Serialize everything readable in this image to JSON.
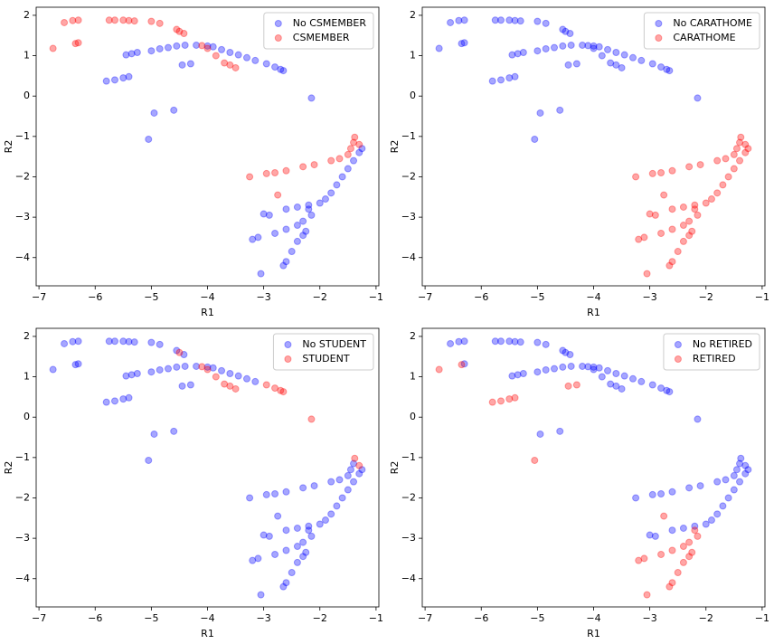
{
  "chart_data": [
    {
      "type": "scatter",
      "xlabel": "R1",
      "ylabel": "R2",
      "xlim": [
        -7.05,
        -0.95
      ],
      "ylim": [
        -4.7,
        2.2
      ],
      "xticks": [
        {
          "value": -7,
          "label": "−7"
        },
        {
          "value": -6,
          "label": "−6"
        },
        {
          "value": -5,
          "label": "−5"
        },
        {
          "value": -4,
          "label": "−4"
        },
        {
          "value": -3,
          "label": "−3"
        },
        {
          "value": -2,
          "label": "−2"
        },
        {
          "value": -1,
          "label": "−1"
        }
      ],
      "yticks": [
        {
          "value": -4,
          "label": "−4"
        },
        {
          "value": -3,
          "label": "−3"
        },
        {
          "value": -2,
          "label": "−2"
        },
        {
          "value": -1,
          "label": "−1"
        },
        0,
        1,
        2
      ],
      "legend": "upper right",
      "marker_alpha": 0.35,
      "series": [
        {
          "name": "No CSMEMBER",
          "color": "#0000ff",
          "x": [
            -5.45,
            -5.35,
            -5.25,
            -5.0,
            -4.85,
            -4.7,
            -4.55,
            -4.4,
            -4.2,
            -4.0,
            -3.9,
            -3.75,
            -3.6,
            -3.45,
            -3.3,
            -3.15,
            -2.95,
            -2.8,
            -2.7,
            -2.65,
            -5.8,
            -5.65,
            -5.5,
            -5.4,
            -4.45,
            -4.3,
            -4.95,
            -4.6,
            -5.05,
            -2.15,
            -1.25,
            -1.3,
            -1.4,
            -1.5,
            -1.6,
            -1.7,
            -1.8,
            -1.9,
            -2.0,
            -2.2,
            -2.4,
            -2.6,
            -2.9,
            -3.0,
            -2.2,
            -2.15,
            -2.3,
            -2.4,
            -2.6,
            -2.8,
            -3.1,
            -3.2,
            -2.25,
            -2.4,
            -2.5,
            -2.6,
            -2.65,
            -3.05,
            -2.3
          ],
          "values": [
            1.02,
            1.05,
            1.08,
            1.12,
            1.17,
            1.2,
            1.24,
            1.26,
            1.26,
            1.24,
            1.22,
            1.15,
            1.08,
            1.02,
            0.95,
            0.88,
            0.8,
            0.72,
            0.66,
            0.63,
            0.37,
            0.4,
            0.45,
            0.48,
            0.77,
            0.8,
            -0.42,
            -0.35,
            -1.07,
            -0.05,
            -1.3,
            -1.4,
            -1.6,
            -1.8,
            -2.0,
            -2.2,
            -2.4,
            -2.55,
            -2.65,
            -2.7,
            -2.75,
            -2.8,
            -2.95,
            -2.92,
            -2.8,
            -2.95,
            -3.1,
            -3.2,
            -3.3,
            -3.4,
            -3.5,
            -3.55,
            -3.35,
            -3.6,
            -3.85,
            -4.1,
            -4.2,
            -4.4,
            -3.45
          ]
        },
        {
          "name": "CSMEMBER",
          "color": "#ff0000",
          "x": [
            -6.55,
            -6.4,
            -6.3,
            -5.75,
            -5.65,
            -5.5,
            -5.4,
            -5.3,
            -5.0,
            -4.85,
            -4.55,
            -4.5,
            -4.42,
            -6.75,
            -6.35,
            -6.3,
            -4.1,
            -4.0,
            -3.85,
            -3.7,
            -3.6,
            -3.5,
            -3.25,
            -2.95,
            -2.8,
            -2.6,
            -2.3,
            -2.1,
            -1.8,
            -1.65,
            -1.5,
            -1.45,
            -1.4,
            -1.38,
            -1.3,
            -2.75
          ],
          "values": [
            1.82,
            1.87,
            1.88,
            1.88,
            1.88,
            1.88,
            1.87,
            1.86,
            1.85,
            1.8,
            1.65,
            1.6,
            1.55,
            1.18,
            1.3,
            1.32,
            1.25,
            1.18,
            1.0,
            0.82,
            0.77,
            0.7,
            -2.0,
            -1.92,
            -1.9,
            -1.85,
            -1.75,
            -1.7,
            -1.6,
            -1.55,
            -1.45,
            -1.3,
            -1.15,
            -1.02,
            -1.2,
            -2.45
          ]
        }
      ]
    },
    {
      "type": "scatter",
      "xlabel": "R1",
      "ylabel": "R2",
      "xlim": [
        -7.05,
        -0.95
      ],
      "ylim": [
        -4.7,
        2.2
      ],
      "xticks": [
        {
          "value": -7,
          "label": "−7"
        },
        {
          "value": -6,
          "label": "−6"
        },
        {
          "value": -5,
          "label": "−5"
        },
        {
          "value": -4,
          "label": "−4"
        },
        {
          "value": -3,
          "label": "−3"
        },
        {
          "value": -2,
          "label": "−2"
        },
        {
          "value": -1,
          "label": "−1"
        }
      ],
      "yticks": [
        {
          "value": -4,
          "label": "−4"
        },
        {
          "value": -3,
          "label": "−3"
        },
        {
          "value": -2,
          "label": "−2"
        },
        {
          "value": -1,
          "label": "−1"
        },
        0,
        1,
        2
      ],
      "legend": "upper right",
      "marker_alpha": 0.35,
      "series": [
        {
          "name": "No CARATHOME",
          "color": "#0000ff",
          "x": [
            -6.55,
            -6.4,
            -6.3,
            -5.75,
            -5.65,
            -5.5,
            -5.4,
            -5.3,
            -5.0,
            -4.85,
            -4.55,
            -4.5,
            -4.42,
            -6.75,
            -6.35,
            -6.3,
            -5.45,
            -5.35,
            -5.25,
            -5.0,
            -4.85,
            -4.7,
            -4.55,
            -4.4,
            -4.2,
            -4.0,
            -3.9,
            -3.75,
            -3.6,
            -3.45,
            -3.3,
            -3.15,
            -2.95,
            -2.8,
            -2.7,
            -2.65,
            -4.1,
            -4.0,
            -3.85,
            -3.7,
            -3.6,
            -3.5,
            -5.8,
            -5.65,
            -5.5,
            -5.4,
            -4.45,
            -4.3,
            -4.95,
            -4.6,
            -5.05,
            -2.15
          ],
          "values": [
            1.82,
            1.87,
            1.88,
            1.88,
            1.88,
            1.88,
            1.87,
            1.86,
            1.85,
            1.8,
            1.65,
            1.6,
            1.55,
            1.18,
            1.3,
            1.32,
            1.02,
            1.05,
            1.08,
            1.12,
            1.17,
            1.2,
            1.24,
            1.26,
            1.26,
            1.24,
            1.22,
            1.15,
            1.08,
            1.02,
            0.95,
            0.88,
            0.8,
            0.72,
            0.66,
            0.63,
            1.25,
            1.18,
            1.0,
            0.82,
            0.77,
            0.7,
            0.37,
            0.4,
            0.45,
            0.48,
            0.77,
            0.8,
            -0.42,
            -0.35,
            -1.07,
            -0.05
          ]
        },
        {
          "name": "CARATHOME",
          "color": "#ff0000",
          "x": [
            -3.25,
            -2.95,
            -2.8,
            -2.6,
            -2.3,
            -2.1,
            -1.8,
            -1.65,
            -1.5,
            -1.45,
            -1.4,
            -1.38,
            -1.3,
            -2.75,
            -1.25,
            -1.3,
            -1.4,
            -1.5,
            -1.6,
            -1.7,
            -1.8,
            -1.9,
            -2.0,
            -2.2,
            -2.4,
            -2.6,
            -2.9,
            -3.0,
            -2.2,
            -2.15,
            -2.3,
            -2.4,
            -2.6,
            -2.8,
            -3.1,
            -3.2,
            -2.25,
            -2.4,
            -2.5,
            -2.6,
            -2.65,
            -3.05,
            -2.3
          ],
          "values": [
            -2.0,
            -1.92,
            -1.9,
            -1.85,
            -1.75,
            -1.7,
            -1.6,
            -1.55,
            -1.45,
            -1.3,
            -1.15,
            -1.02,
            -1.2,
            -2.45,
            -1.3,
            -1.4,
            -1.6,
            -1.8,
            -2.0,
            -2.2,
            -2.4,
            -2.55,
            -2.65,
            -2.7,
            -2.75,
            -2.8,
            -2.95,
            -2.92,
            -2.8,
            -2.95,
            -3.1,
            -3.2,
            -3.3,
            -3.4,
            -3.5,
            -3.55,
            -3.35,
            -3.6,
            -3.85,
            -4.1,
            -4.2,
            -4.4,
            -3.45
          ]
        }
      ]
    },
    {
      "type": "scatter",
      "xlabel": "R1",
      "ylabel": "R2",
      "xlim": [
        -7.05,
        -0.95
      ],
      "ylim": [
        -4.7,
        2.2
      ],
      "xticks": [
        {
          "value": -7,
          "label": "−7"
        },
        {
          "value": -6,
          "label": "−6"
        },
        {
          "value": -5,
          "label": "−5"
        },
        {
          "value": -4,
          "label": "−4"
        },
        {
          "value": -3,
          "label": "−3"
        },
        {
          "value": -2,
          "label": "−2"
        },
        {
          "value": -1,
          "label": "−1"
        }
      ],
      "yticks": [
        {
          "value": -4,
          "label": "−4"
        },
        {
          "value": -3,
          "label": "−3"
        },
        {
          "value": -2,
          "label": "−2"
        },
        {
          "value": -1,
          "label": "−1"
        },
        0,
        1,
        2
      ],
      "legend": "upper right",
      "marker_alpha": 0.35,
      "series": [
        {
          "name": "No STUDENT",
          "color": "#0000ff",
          "x": [
            -6.55,
            -6.4,
            -6.3,
            -5.75,
            -5.65,
            -5.5,
            -5.4,
            -5.3,
            -5.0,
            -4.85,
            -4.55,
            -4.42,
            -6.75,
            -6.35,
            -6.3,
            -5.45,
            -5.35,
            -5.25,
            -5.0,
            -4.85,
            -4.7,
            -4.55,
            -4.4,
            -4.2,
            -4.0,
            -3.9,
            -3.75,
            -3.6,
            -3.45,
            -3.3,
            -3.15,
            -5.8,
            -5.65,
            -5.5,
            -5.4,
            -4.45,
            -4.3,
            -4.95,
            -4.6,
            -5.05,
            -3.25,
            -2.95,
            -2.8,
            -2.6,
            -2.3,
            -2.1,
            -1.8,
            -1.65,
            -1.5,
            -1.45,
            -1.4,
            -2.75,
            -1.25,
            -1.3,
            -1.4,
            -1.5,
            -1.6,
            -1.7,
            -1.8,
            -1.9,
            -2.0,
            -2.2,
            -2.4,
            -2.6,
            -2.9,
            -3.0,
            -2.2,
            -2.15,
            -2.3,
            -2.4,
            -2.6,
            -2.8,
            -3.1,
            -3.2,
            -2.25,
            -2.4,
            -2.5,
            -2.6,
            -2.65,
            -3.05,
            -2.3
          ],
          "values": [
            1.82,
            1.87,
            1.88,
            1.88,
            1.88,
            1.88,
            1.87,
            1.86,
            1.85,
            1.8,
            1.65,
            1.55,
            1.18,
            1.3,
            1.32,
            1.02,
            1.05,
            1.08,
            1.12,
            1.17,
            1.2,
            1.24,
            1.26,
            1.26,
            1.24,
            1.22,
            1.15,
            1.08,
            1.02,
            0.95,
            0.88,
            0.37,
            0.4,
            0.45,
            0.48,
            0.77,
            0.8,
            -0.42,
            -0.35,
            -1.07,
            -2.0,
            -1.92,
            -1.9,
            -1.85,
            -1.75,
            -1.7,
            -1.6,
            -1.55,
            -1.45,
            -1.3,
            -1.15,
            -2.45,
            -1.3,
            -1.4,
            -1.6,
            -1.8,
            -2.0,
            -2.2,
            -2.4,
            -2.55,
            -2.65,
            -2.7,
            -2.75,
            -2.8,
            -2.95,
            -2.92,
            -2.8,
            -2.95,
            -3.1,
            -3.2,
            -3.3,
            -3.4,
            -3.5,
            -3.55,
            -3.35,
            -3.6,
            -3.85,
            -4.1,
            -4.2,
            -4.4,
            -3.45
          ]
        },
        {
          "name": "STUDENT",
          "color": "#ff0000",
          "x": [
            -4.5,
            -4.1,
            -4.0,
            -3.85,
            -3.7,
            -3.6,
            -3.5,
            -2.95,
            -2.8,
            -2.7,
            -2.65,
            -2.15,
            -1.38,
            -1.3
          ],
          "values": [
            1.6,
            1.25,
            1.18,
            1.0,
            0.82,
            0.77,
            0.7,
            0.8,
            0.72,
            0.66,
            0.63,
            -0.05,
            -1.02,
            -1.2
          ]
        }
      ]
    },
    {
      "type": "scatter",
      "xlabel": "R1",
      "ylabel": "R2",
      "xlim": [
        -7.05,
        -0.95
      ],
      "ylim": [
        -4.7,
        2.2
      ],
      "xticks": [
        {
          "value": -7,
          "label": "−7"
        },
        {
          "value": -6,
          "label": "−6"
        },
        {
          "value": -5,
          "label": "−5"
        },
        {
          "value": -4,
          "label": "−4"
        },
        {
          "value": -3,
          "label": "−3"
        },
        {
          "value": -2,
          "label": "−2"
        },
        {
          "value": -1,
          "label": "−1"
        }
      ],
      "yticks": [
        {
          "value": -4,
          "label": "−4"
        },
        {
          "value": -3,
          "label": "−3"
        },
        {
          "value": -2,
          "label": "−2"
        },
        {
          "value": -1,
          "label": "−1"
        },
        0,
        1,
        2
      ],
      "legend": "upper right",
      "marker_alpha": 0.35,
      "series": [
        {
          "name": "No RETIRED",
          "color": "#0000ff",
          "x": [
            -6.55,
            -6.4,
            -6.3,
            -5.75,
            -5.65,
            -5.5,
            -5.4,
            -5.3,
            -5.0,
            -4.85,
            -4.55,
            -4.5,
            -4.42,
            -6.3,
            -5.45,
            -5.35,
            -5.25,
            -5.0,
            -4.85,
            -4.7,
            -4.55,
            -4.4,
            -4.2,
            -4.0,
            -3.9,
            -3.75,
            -3.6,
            -3.45,
            -3.3,
            -3.15,
            -2.95,
            -2.8,
            -2.7,
            -2.65,
            -4.1,
            -4.0,
            -3.85,
            -3.7,
            -3.6,
            -3.5,
            -4.95,
            -4.6,
            -2.15,
            -3.25,
            -2.95,
            -2.8,
            -2.6,
            -2.3,
            -2.1,
            -1.8,
            -1.65,
            -1.5,
            -1.45,
            -1.4,
            -1.38,
            -1.3,
            -1.25,
            -1.3,
            -1.4,
            -1.5,
            -1.6,
            -1.7,
            -1.8,
            -1.9,
            -2.0,
            -2.2,
            -2.4,
            -2.6,
            -2.9,
            -3.0
          ],
          "values": [
            1.82,
            1.87,
            1.88,
            1.88,
            1.88,
            1.88,
            1.87,
            1.86,
            1.85,
            1.8,
            1.65,
            1.6,
            1.55,
            1.32,
            1.02,
            1.05,
            1.08,
            1.12,
            1.17,
            1.2,
            1.24,
            1.26,
            1.26,
            1.24,
            1.22,
            1.15,
            1.08,
            1.02,
            0.95,
            0.88,
            0.8,
            0.72,
            0.66,
            0.63,
            1.25,
            1.18,
            1.0,
            0.82,
            0.77,
            0.7,
            -0.42,
            -0.35,
            -0.05,
            -2.0,
            -1.92,
            -1.9,
            -1.85,
            -1.75,
            -1.7,
            -1.6,
            -1.55,
            -1.45,
            -1.3,
            -1.15,
            -1.02,
            -1.2,
            -1.3,
            -1.4,
            -1.6,
            -1.8,
            -2.0,
            -2.2,
            -2.4,
            -2.55,
            -2.65,
            -2.7,
            -2.75,
            -2.8,
            -2.95,
            -2.92
          ]
        },
        {
          "name": "RETIRED",
          "color": "#ff0000",
          "x": [
            -6.75,
            -6.35,
            -5.8,
            -5.65,
            -5.5,
            -5.4,
            -4.45,
            -4.3,
            -5.05,
            -2.75,
            -2.2,
            -2.15,
            -2.3,
            -2.4,
            -2.6,
            -2.8,
            -3.1,
            -3.2,
            -2.25,
            -2.4,
            -2.5,
            -2.6,
            -2.65,
            -3.05,
            -2.3
          ],
          "values": [
            1.18,
            1.3,
            0.37,
            0.4,
            0.45,
            0.48,
            0.77,
            0.8,
            -1.07,
            -2.45,
            -2.8,
            -2.95,
            -3.1,
            -3.2,
            -3.3,
            -3.4,
            -3.5,
            -3.55,
            -3.35,
            -3.6,
            -3.85,
            -4.1,
            -4.2,
            -4.4,
            -3.45
          ]
        }
      ]
    }
  ]
}
